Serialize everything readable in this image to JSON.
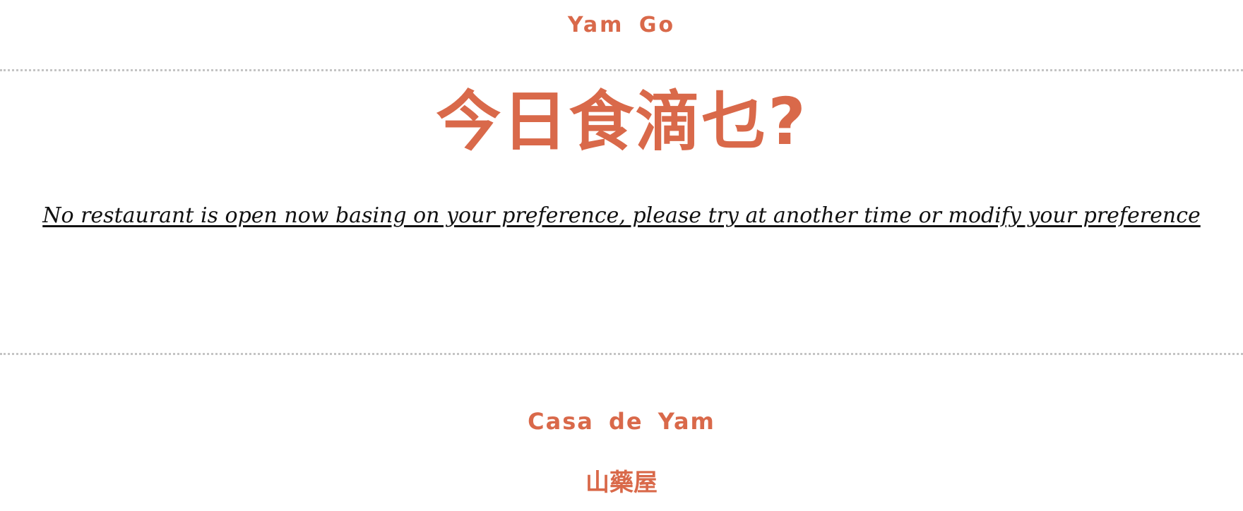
{
  "header": {
    "brand": "Yam Go"
  },
  "main": {
    "headline": "今日食滴乜?",
    "message": "No restaurant is open now basing on your preference, please try at another time or modify your preference"
  },
  "footer": {
    "name_en": "Casa de Yam",
    "name_cn": "山藥屋"
  },
  "colors": {
    "accent": "#d9694a",
    "divider": "#c4c4c4",
    "text": "#111111"
  }
}
